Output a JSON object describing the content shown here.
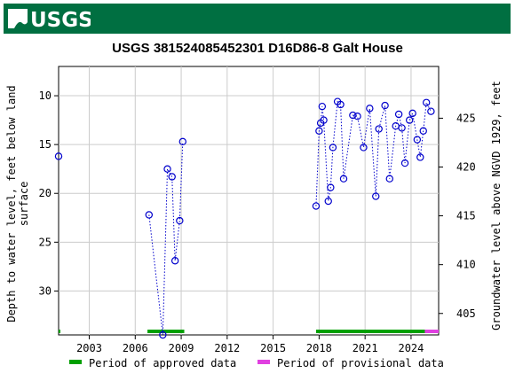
{
  "header": {
    "logo_text": "USGS"
  },
  "chart_data": {
    "type": "scatter",
    "title": "USGS 381524085452301 D16D86-8  Galt House",
    "ylabel_left": [
      "Depth to water level, feet below land",
      "surface"
    ],
    "ylabel_right": "Groundwater level above NGVD 1929, feet",
    "xlim": [
      2001,
      2025.8
    ],
    "ylim_left": [
      7,
      34.5
    ],
    "ylim_right_ticks": [
      425,
      420,
      415,
      410,
      405
    ],
    "right_axis_offset": 437.3,
    "x_ticks": [
      "2003",
      "2006",
      "2009",
      "2012",
      "2015",
      "2018",
      "2021",
      "2024"
    ],
    "y_ticks_left": [
      "10",
      "15",
      "20",
      "25",
      "30"
    ],
    "grid": true,
    "series": [
      {
        "x": [
          2001.0
        ],
        "y": [
          16.2
        ]
      },
      {
        "x": [
          2006.9,
          2007.8,
          2008.1,
          2008.4,
          2008.6,
          2008.9,
          2009.1
        ],
        "y": [
          22.2,
          34.5,
          17.5,
          18.3,
          26.9,
          22.8,
          14.7
        ]
      },
      {
        "x": [
          2017.8,
          2018.0,
          2018.1,
          2018.2,
          2018.3,
          2018.6,
          2018.75,
          2018.9,
          2019.2,
          2019.4,
          2019.6,
          2020.2,
          2020.5,
          2020.9,
          2021.3,
          2021.7,
          2021.9,
          2022.3,
          2022.6,
          2023.0,
          2023.2,
          2023.4,
          2023.6,
          2023.9,
          2024.1,
          2024.4,
          2024.6,
          2024.8,
          2025.0,
          2025.3
        ],
        "y": [
          21.3,
          13.6,
          12.8,
          11.1,
          12.5,
          20.8,
          19.4,
          15.3,
          10.6,
          10.9,
          18.5,
          12.0,
          12.1,
          15.3,
          11.3,
          20.3,
          13.4,
          11.0,
          18.5,
          13.1,
          11.9,
          13.3,
          16.9,
          12.5,
          11.8,
          14.5,
          16.3,
          13.6,
          10.7,
          11.6
        ]
      }
    ],
    "period_bars": [
      {
        "status": "approved",
        "start": 2001.0,
        "end": 2001.1
      },
      {
        "status": "approved",
        "start": 2006.8,
        "end": 2009.2
      },
      {
        "status": "approved",
        "start": 2017.8,
        "end": 2024.9
      },
      {
        "status": "provisional",
        "start": 2024.9,
        "end": 2025.8
      }
    ],
    "legend": [
      {
        "label": "Period of approved data",
        "color": "#00a000"
      },
      {
        "label": "Period of provisional data",
        "color": "#e040e0"
      }
    ],
    "legend_position": "bottom",
    "point_color": "#0000cc",
    "grid_color": "#cccccc"
  }
}
